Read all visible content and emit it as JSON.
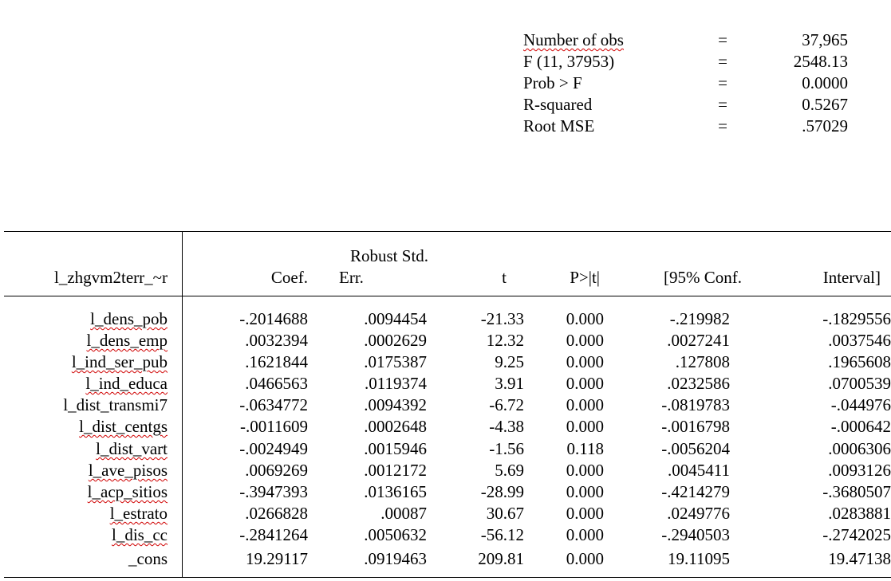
{
  "colors": {
    "spellcheck": "#d00000"
  },
  "stats": [
    {
      "label": "Number of obs",
      "eq": "=",
      "value": "37,965"
    },
    {
      "label": "F (11, 37953)",
      "eq": "=",
      "value": "2548.13"
    },
    {
      "label": "Prob > F",
      "eq": "=",
      "value": "0.0000"
    },
    {
      "label": "R-squared",
      "eq": "=",
      "value": "0.5267"
    },
    {
      "label": "Root MSE",
      "eq": "=",
      "value": ".57029"
    }
  ],
  "table": {
    "headers": {
      "depvar": "l_zhgvm2terr_~r",
      "coef": "Coef.",
      "se_top": "Robust Std.",
      "se_bottom": "Err.",
      "t": "t",
      "p": "P>|t|",
      "ci_low": "[95% Conf.",
      "ci_high": "Interval]"
    },
    "rows": [
      {
        "var": "l_dens_pob",
        "coef": "-.2014688",
        "se": ".0094454",
        "t": "-21.33",
        "p": "0.000",
        "lo": "-.219982",
        "hi": "-.1829556"
      },
      {
        "var": "l_dens_emp",
        "coef": ".0032394",
        "se": ".0002629",
        "t": "12.32",
        "p": "0.000",
        "lo": ".0027241",
        "hi": ".0037546"
      },
      {
        "var": "l_ind_ser_pub",
        "coef": ".1621844",
        "se": ".0175387",
        "t": "9.25",
        "p": "0.000",
        "lo": ".127808",
        "hi": ".1965608"
      },
      {
        "var": "l_ind_educa",
        "coef": ".0466563",
        "se": ".0119374",
        "t": "3.91",
        "p": "0.000",
        "lo": ".0232586",
        "hi": ".0700539"
      },
      {
        "var": "l_dist_transmi7",
        "coef": "-.0634772",
        "se": ".0094392",
        "t": "-6.72",
        "p": "0.000",
        "lo": "-.0819783",
        "hi": "-.044976"
      },
      {
        "var": "l_dist_centgs",
        "coef": "-.0011609",
        "se": ".0002648",
        "t": "-4.38",
        "p": "0.000",
        "lo": "-.0016798",
        "hi": "-.000642"
      },
      {
        "var": "l_dist_vart",
        "coef": "-.0024949",
        "se": ".0015946",
        "t": "-1.56",
        "p": "0.118",
        "lo": "-.0056204",
        "hi": ".0006306"
      },
      {
        "var": "l_ave_pisos",
        "coef": ".0069269",
        "se": ".0012172",
        "t": "5.69",
        "p": "0.000",
        "lo": ".0045411",
        "hi": ".0093126"
      },
      {
        "var": "l_acp_sitios",
        "coef": "-.3947393",
        "se": ".0136165",
        "t": "-28.99",
        "p": "0.000",
        "lo": "-.4214279",
        "hi": "-.3680507"
      },
      {
        "var": "l_estrato",
        "coef": ".0266828",
        "se": ".00087",
        "t": "30.67",
        "p": "0.000",
        "lo": ".0249776",
        "hi": ".0283881"
      },
      {
        "var": "l_dis_cc",
        "coef": "-.2841264",
        "se": ".0050632",
        "t": "-56.12",
        "p": "0.000",
        "lo": "-.2940503",
        "hi": "-.2742025"
      },
      {
        "var": "_cons",
        "coef": "19.29117",
        "se": ".0919463",
        "t": "209.81",
        "p": "0.000",
        "lo": "19.11095",
        "hi": "19.47138"
      }
    ]
  }
}
